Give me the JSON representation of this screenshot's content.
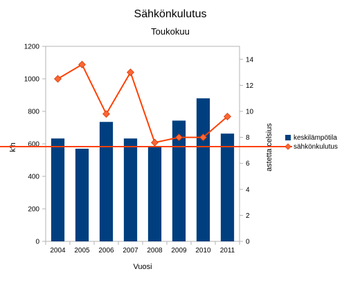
{
  "chart_data": {
    "type": "bar",
    "title": "Sähkönkulutus",
    "subtitle": "Toukokuu",
    "xlabel": "Vuosi",
    "ylabel": "k'h",
    "y2label": "astetta celsius",
    "categories": [
      "2004",
      "2005",
      "2006",
      "2007",
      "2008",
      "2009",
      "2010",
      "2011"
    ],
    "ylim": [
      0,
      1200
    ],
    "yticks": [
      0,
      200,
      400,
      600,
      800,
      1000,
      1200
    ],
    "y2lim": [
      0,
      15
    ],
    "y2ticks": [
      0,
      2,
      4,
      6,
      8,
      10,
      12,
      14
    ],
    "grid": false,
    "legend_position": "right",
    "series": [
      {
        "name": "keskilämpötila",
        "kind": "bar",
        "axis": "left",
        "color": "#003f7f",
        "values": [
          633,
          570,
          735,
          633,
          583,
          743,
          880,
          663
        ]
      },
      {
        "name": "sähkönkulutus",
        "kind": "line",
        "axis": "right",
        "color": "#ff4000",
        "marker_color": "#ff6633",
        "values": [
          12.5,
          13.6,
          9.8,
          13.0,
          7.6,
          8.0,
          8.0,
          9.6
        ]
      }
    ]
  }
}
